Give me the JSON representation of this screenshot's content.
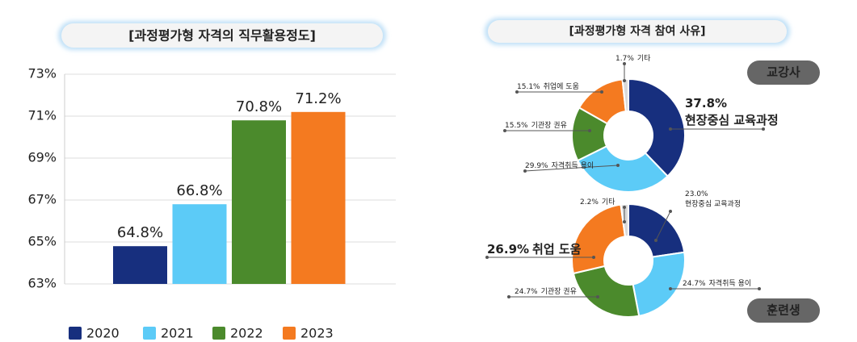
{
  "chart_data": [
    {
      "type": "bar",
      "title": "[과정평가형 자격의 직무활용정도]",
      "categories": [
        "2020",
        "2021",
        "2022",
        "2023"
      ],
      "values": [
        64.8,
        66.8,
        70.8,
        71.2
      ],
      "value_labels": [
        "64.8%",
        "66.8%",
        "70.8%",
        "71.2%"
      ],
      "colors": [
        "#172f7e",
        "#5ccbf7",
        "#4b8a2c",
        "#f47a20"
      ],
      "ylim": [
        63,
        73
      ],
      "yticks": [
        {
          "value": 63,
          "label": "63%"
        },
        {
          "value": 65,
          "label": "65%"
        },
        {
          "value": 67,
          "label": "67%"
        },
        {
          "value": 69,
          "label": "69%"
        },
        {
          "value": 71,
          "label": "71%"
        },
        {
          "value": 73,
          "label": "73%"
        }
      ],
      "grid": true,
      "legend": "bottom"
    },
    {
      "type": "donut",
      "title": "[과정평가형 자격 참여 사유]",
      "subtitle": "교강사",
      "categories": [
        "현장중심 교육과정",
        "자격취득 용이",
        "기관장 권유",
        "취업에 도움",
        "기타"
      ],
      "values": [
        37.8,
        29.9,
        15.5,
        15.1,
        1.7
      ],
      "value_labels": [
        "37.8%",
        "29.9%",
        "15.5%",
        "15.1%",
        "1.7%"
      ],
      "colors": [
        "#172f7e",
        "#5ccbf7",
        "#4b8a2c",
        "#f47a20",
        "#d9d9d9"
      ]
    },
    {
      "type": "donut",
      "subtitle": "훈련생",
      "categories": [
        "현장중심 교육과정",
        "자격취득 용이",
        "기관장 권유",
        "취업 도움",
        "기타"
      ],
      "values": [
        23.0,
        24.7,
        24.7,
        26.9,
        2.2
      ],
      "value_labels": [
        "23.0%",
        "24.7%",
        "24.7%",
        "26.9%",
        "2.2%"
      ],
      "colors": [
        "#172f7e",
        "#5ccbf7",
        "#4b8a2c",
        "#f47a20",
        "#d9d9d9"
      ]
    }
  ]
}
